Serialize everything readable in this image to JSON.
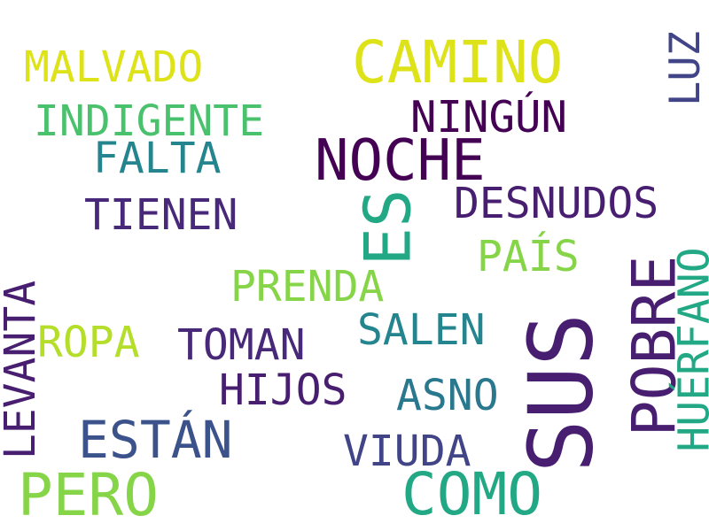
{
  "palette": {
    "yellow": "#dde318",
    "lime": "#b5de2b",
    "light_green": "#86d549",
    "green": "#4ac16d",
    "teal_green": "#22a884",
    "teal": "#25858e",
    "blue_teal": "#2a788e",
    "blue": "#3b528b",
    "slate": "#414487",
    "indigo": "#482878",
    "purple": "#481f70",
    "dark_purple": "#440154"
  },
  "words": [
    {
      "key": "camino",
      "text": "CAMINO",
      "color": "#dde318"
    },
    {
      "key": "malvado",
      "text": "MALVADO",
      "color": "#dde318"
    },
    {
      "key": "luz",
      "text": "LUZ",
      "color": "#414487"
    },
    {
      "key": "indigente",
      "text": "INDIGENTE",
      "color": "#4ac16d"
    },
    {
      "key": "ningun",
      "text": "NINGÚN",
      "color": "#440154"
    },
    {
      "key": "noche",
      "text": "NOCHE",
      "color": "#440154"
    },
    {
      "key": "falta",
      "text": "FALTA",
      "color": "#25858e"
    },
    {
      "key": "es",
      "text": "ES",
      "color": "#22a884"
    },
    {
      "key": "desnudos",
      "text": "DESNUDOS",
      "color": "#481f70"
    },
    {
      "key": "tienen",
      "text": "TIENEN",
      "color": "#482878"
    },
    {
      "key": "pais",
      "text": "PAÍS",
      "color": "#86d549"
    },
    {
      "key": "pobre",
      "text": "POBRE",
      "color": "#481f70"
    },
    {
      "key": "huerfano",
      "text": "HUÉRFANO",
      "color": "#22a884"
    },
    {
      "key": "prenda",
      "text": "PRENDA",
      "color": "#86d549"
    },
    {
      "key": "levanta",
      "text": "LEVANTA",
      "color": "#481f70"
    },
    {
      "key": "salen",
      "text": "SALEN",
      "color": "#25858e"
    },
    {
      "key": "sus",
      "text": "SUS",
      "color": "#481f70"
    },
    {
      "key": "ropa",
      "text": "ROPA",
      "color": "#b5de2b"
    },
    {
      "key": "toman",
      "text": "TOMAN",
      "color": "#482878"
    },
    {
      "key": "hijos",
      "text": "HIJOS",
      "color": "#481f70"
    },
    {
      "key": "asno",
      "text": "ASNO",
      "color": "#2a788e"
    },
    {
      "key": "estan",
      "text": "ESTÁN",
      "color": "#3b528b"
    },
    {
      "key": "viuda",
      "text": "VIUDA",
      "color": "#414487"
    },
    {
      "key": "pero",
      "text": "PERO",
      "color": "#86d549"
    },
    {
      "key": "como",
      "text": "COMO",
      "color": "#22a884"
    }
  ]
}
